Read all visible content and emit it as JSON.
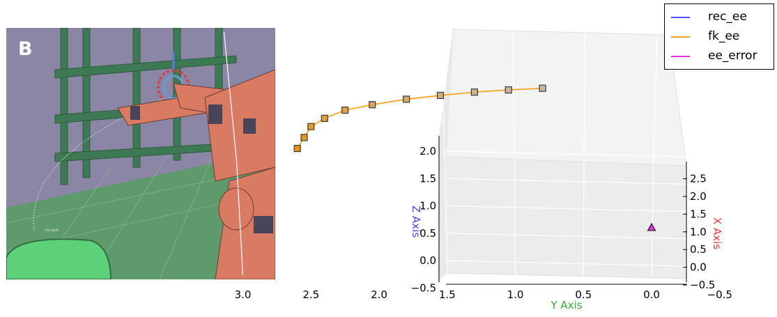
{
  "panel_label": "B",
  "scene_label": "ctrl pick",
  "colors": {
    "rec_ee": "#4f4ff2",
    "fk_ee": "#f5a623",
    "ee_error": "#ee2ee2",
    "marker_fill_start": "#e8920f",
    "marker_fill_end": "#c9b8a8",
    "x_axis_label": "#e23c3c",
    "y_axis_label": "#33a533",
    "z_axis_label": "#4444ee"
  },
  "chart_data": {
    "type": "scatter",
    "projection": "3d",
    "xlabel": "X Axis",
    "ylabel": "Y Axis",
    "zlabel": "Z Axis",
    "x_ticks": [
      "−0.5",
      "0.0",
      "0.5",
      "1.0",
      "1.5",
      "2.0",
      "2.5"
    ],
    "y_ticks": [
      "3.0",
      "2.5",
      "2.0",
      "1.5",
      "1.0",
      "0.5",
      "0.0",
      "−0.5"
    ],
    "z_ticks": [
      "−0.5",
      "0.0",
      "0.5",
      "1.0",
      "1.5",
      "2.0"
    ],
    "grid": true,
    "legend": {
      "position": "top-right",
      "entries": [
        "rec_ee",
        "fk_ee",
        "ee_error"
      ]
    },
    "series": [
      {
        "name": "rec_ee",
        "marker": "square",
        "points": [
          {
            "y": 2.6,
            "z": 2.05
          },
          {
            "y": 2.55,
            "z": 2.25
          },
          {
            "y": 2.5,
            "z": 2.45
          },
          {
            "y": 2.4,
            "z": 2.6
          },
          {
            "y": 2.25,
            "z": 2.75
          },
          {
            "y": 2.05,
            "z": 2.85
          },
          {
            "y": 1.8,
            "z": 2.95
          },
          {
            "y": 1.55,
            "z": 3.02
          },
          {
            "y": 1.3,
            "z": 3.08
          },
          {
            "y": 1.05,
            "z": 3.12
          },
          {
            "y": 0.8,
            "z": 3.15
          }
        ]
      },
      {
        "name": "fk_ee",
        "marker": "line",
        "points": "same as rec_ee"
      },
      {
        "name": "ee_error",
        "marker": "triangle",
        "points": [
          {
            "y": 0.0,
            "z": 0.6
          }
        ]
      }
    ]
  }
}
